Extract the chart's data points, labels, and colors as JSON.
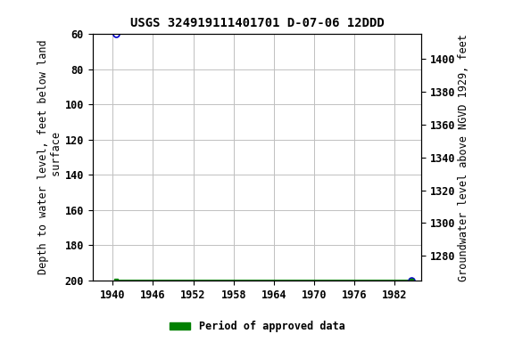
{
  "title": "USGS 324919111401701 D-07-06 12DDD",
  "ylabel_left": "Depth to water level, feet below land\n surface",
  "ylabel_right": "Groundwater level above NGVD 1929, feet",
  "xlim": [
    1937,
    1986
  ],
  "ylim_left": [
    60,
    200
  ],
  "ylim_right": [
    1270,
    1410
  ],
  "xticks": [
    1940,
    1946,
    1952,
    1958,
    1964,
    1970,
    1976,
    1982
  ],
  "yticks_left": [
    60,
    80,
    100,
    120,
    140,
    160,
    180,
    200
  ],
  "yticks_right": [
    1280,
    1300,
    1320,
    1340,
    1360,
    1380,
    1400
  ],
  "pt1_x": 1940.5,
  "pt1_y": 60,
  "pt2_x": 1984.5,
  "pt2_y": 200,
  "line_y": 200,
  "line_x_start": 1940.5,
  "line_x_end": 1984.5,
  "blue_color": "#0000cc",
  "green_color": "#008000",
  "grid_color": "#c0c0c0",
  "bg_color": "#ffffff",
  "legend_label": "Period of approved data",
  "title_fontsize": 10,
  "label_fontsize": 8.5,
  "tick_fontsize": 8.5
}
